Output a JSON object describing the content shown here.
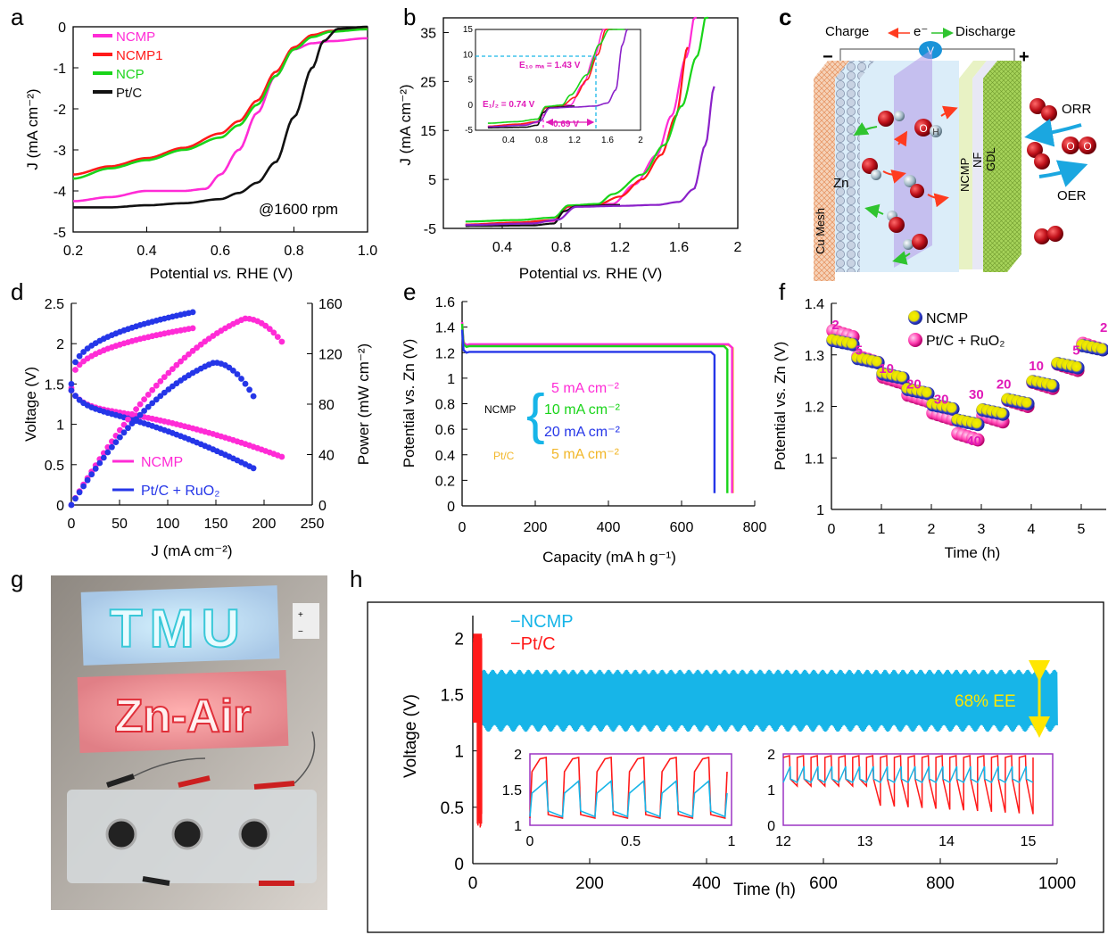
{
  "colors": {
    "NCMP": "#ff2bd6",
    "NCMP1": "#ff1a1a",
    "NCP": "#19d419",
    "PtC": "#111111",
    "PtC_RuO2": "#2536e8",
    "purple": "#8b21c9",
    "fiveOrange": "#f2b72a",
    "cyan": "#17b5e8",
    "annot": "#e01ab8"
  },
  "panels": {
    "a": {
      "letter": "a",
      "xlabel": "Potential vs. RHE (V)",
      "xlabel_pre": "Potential ",
      "xlabel_it": "vs.",
      "xlabel_post": " RHE (V)",
      "ylabel": "J (mA cm⁻²)",
      "annotation": "@1600 rpm",
      "legend": [
        "NCMP",
        "NCMP1",
        "NCP",
        "Pt/C"
      ]
    },
    "b": {
      "letter": "b",
      "xlabel_pre": "Potential ",
      "xlabel_it": "vs.",
      "xlabel_post": " RHE (V)",
      "ylabel": "J (mA cm⁻²)",
      "inset_labels": {
        "e10": "E₁₀ ₘₐ = 1.43 V",
        "ehalf": "E₁/₂ = 0.74 V",
        "gap": "0.69 V"
      }
    },
    "c": {
      "letter": "c",
      "charge": "Charge",
      "electron": "e⁻",
      "discharge": "Discharge",
      "minus": "−",
      "plus": "+",
      "v": "V",
      "cu_mesh": "Cu Mesh",
      "zn": "Zn",
      "ncmp": "NCMP",
      "nf": "NF",
      "gdl": "GDL",
      "orr": "ORR",
      "oer": "OER",
      "o": "O",
      "h": "H"
    },
    "d": {
      "letter": "d",
      "xlabel": "J (mA cm⁻²)",
      "ylabel_left": "Voltage (V)",
      "ylabel_right": "Power (mW cm⁻²)",
      "legend": [
        "NCMP",
        "Pt/C + RuO₂"
      ]
    },
    "e": {
      "letter": "e",
      "xlabel": "Capacity (mA h g⁻¹)",
      "ylabel": "Potential vs. Zn (V)",
      "ncmp": "NCMP",
      "ptc": "Pt/C",
      "brace": "{",
      "rates": [
        "5 mA cm⁻²",
        "10 mA cm⁻²",
        "20 mA cm⁻²",
        "5 mA cm⁻²"
      ]
    },
    "f": {
      "letter": "f",
      "xlabel": "Time (h)",
      "ylabel": "Potential vs. Zn (V)",
      "legend": [
        "NCMP",
        "Pt/C + RuO₂"
      ],
      "step_labels": [
        "2",
        "5",
        "10",
        "20",
        "30",
        "40",
        "30",
        "20",
        "10",
        "5",
        "2"
      ]
    },
    "g": {
      "letter": "g",
      "sign_top": "TMU",
      "sign_bottom": "Zn-Air",
      "plus": "+",
      "minus": "−"
    },
    "h": {
      "letter": "h",
      "xlabel": "Time (h)",
      "ylabel": "Voltage (V)",
      "legend": [
        "−NCMP",
        "−Pt/C"
      ],
      "ee": "68% EE"
    }
  },
  "chart_data": [
    {
      "panel": "a",
      "type": "line",
      "xlim": [
        0.2,
        1.0
      ],
      "ylim": [
        -5,
        0
      ],
      "xticks": [
        "0.2",
        "0.4",
        "0.6",
        "0.8",
        "1.0"
      ],
      "yticks": [
        "0",
        "-1",
        "-2",
        "-3",
        "-4",
        "-5"
      ],
      "series": [
        {
          "name": "NCMP",
          "points": [
            [
              0.2,
              -4.25
            ],
            [
              0.3,
              -4.15
            ],
            [
              0.4,
              -4.0
            ],
            [
              0.5,
              -4.0
            ],
            [
              0.56,
              -3.95
            ],
            [
              0.6,
              -3.6
            ],
            [
              0.65,
              -3.0
            ],
            [
              0.7,
              -2.1
            ],
            [
              0.75,
              -1.2
            ],
            [
              0.8,
              -0.55
            ],
            [
              0.85,
              -0.4
            ],
            [
              0.9,
              -0.35
            ],
            [
              1.0,
              -0.28
            ]
          ]
        },
        {
          "name": "NCMP1",
          "points": [
            [
              0.2,
              -3.6
            ],
            [
              0.3,
              -3.4
            ],
            [
              0.4,
              -3.2
            ],
            [
              0.5,
              -2.95
            ],
            [
              0.6,
              -2.6
            ],
            [
              0.65,
              -2.3
            ],
            [
              0.7,
              -1.8
            ],
            [
              0.75,
              -1.1
            ],
            [
              0.8,
              -0.5
            ],
            [
              0.85,
              -0.2
            ],
            [
              0.9,
              -0.1
            ],
            [
              1.0,
              -0.05
            ]
          ]
        },
        {
          "name": "NCP",
          "points": [
            [
              0.2,
              -3.7
            ],
            [
              0.3,
              -3.45
            ],
            [
              0.4,
              -3.25
            ],
            [
              0.5,
              -3.0
            ],
            [
              0.6,
              -2.7
            ],
            [
              0.65,
              -2.4
            ],
            [
              0.7,
              -1.9
            ],
            [
              0.75,
              -1.2
            ],
            [
              0.8,
              -0.55
            ],
            [
              0.85,
              -0.25
            ],
            [
              0.9,
              -0.12
            ],
            [
              1.0,
              -0.06
            ]
          ]
        },
        {
          "name": "Pt/C",
          "points": [
            [
              0.2,
              -4.4
            ],
            [
              0.3,
              -4.4
            ],
            [
              0.4,
              -4.35
            ],
            [
              0.5,
              -4.3
            ],
            [
              0.6,
              -4.2
            ],
            [
              0.65,
              -4.05
            ],
            [
              0.7,
              -3.8
            ],
            [
              0.75,
              -3.3
            ],
            [
              0.8,
              -2.2
            ],
            [
              0.85,
              -1.0
            ],
            [
              0.88,
              -0.35
            ],
            [
              0.92,
              -0.05
            ],
            [
              1.0,
              0
            ]
          ]
        }
      ]
    },
    {
      "panel": "b",
      "type": "line",
      "xlim": [
        0,
        2
      ],
      "ylim": [
        -5,
        38
      ],
      "xticks": [
        "0.4",
        "0.8",
        "1.2",
        "1.6",
        "2"
      ],
      "yticks": [
        "-5",
        "5",
        "15",
        "25",
        "35"
      ],
      "series": [
        {
          "name": "NCMP",
          "points": [
            [
              0.15,
              -4.3
            ],
            [
              0.5,
              -4.0
            ],
            [
              0.75,
              -3.5
            ],
            [
              0.85,
              -0.6
            ],
            [
              1.0,
              -0.1
            ],
            [
              1.15,
              0
            ],
            [
              1.3,
              4
            ],
            [
              1.45,
              10
            ],
            [
              1.55,
              18
            ],
            [
              1.65,
              30
            ],
            [
              1.72,
              40
            ]
          ]
        },
        {
          "name": "NCMP1",
          "points": [
            [
              0.15,
              -4.2
            ],
            [
              0.5,
              -3.8
            ],
            [
              0.75,
              -3.3
            ],
            [
              0.85,
              -0.5
            ],
            [
              1.05,
              -0.1
            ],
            [
              1.2,
              1.5
            ],
            [
              1.35,
              5
            ],
            [
              1.48,
              10
            ],
            [
              1.58,
              18
            ],
            [
              1.66,
              32
            ]
          ]
        },
        {
          "name": "NCP",
          "points": [
            [
              0.15,
              -3.6
            ],
            [
              0.5,
              -3.3
            ],
            [
              0.75,
              -2.8
            ],
            [
              0.85,
              -0.3
            ],
            [
              1.05,
              0
            ],
            [
              1.15,
              2
            ],
            [
              1.35,
              6
            ],
            [
              1.5,
              12
            ],
            [
              1.62,
              20
            ],
            [
              1.72,
              30
            ],
            [
              1.8,
              40
            ]
          ]
        },
        {
          "name": "Pt/C",
          "points": [
            [
              0.15,
              -4.5
            ],
            [
              0.6,
              -4.4
            ],
            [
              0.75,
              -4.0
            ],
            [
              0.82,
              -1.5
            ],
            [
              0.9,
              -0.5
            ],
            [
              1.2,
              -0.2
            ]
          ]
        },
        {
          "name": "purple",
          "points": [
            [
              0.15,
              -4.3
            ],
            [
              0.6,
              -4.0
            ],
            [
              0.78,
              -3.2
            ],
            [
              0.9,
              -0.6
            ],
            [
              1.2,
              -0.4
            ],
            [
              1.45,
              -0.2
            ],
            [
              1.6,
              0.4
            ],
            [
              1.7,
              3
            ],
            [
              1.78,
              12
            ],
            [
              1.84,
              24
            ]
          ]
        }
      ]
    },
    {
      "panel": "d",
      "type": "scatter",
      "xlim": [
        0,
        250
      ],
      "ylim_left": [
        0,
        2.5
      ],
      "ylim_right": [
        0,
        160
      ],
      "xticks": [
        "0",
        "50",
        "100",
        "150",
        "200",
        "250"
      ],
      "yticks_left": [
        "0",
        "0.5",
        "1",
        "1.5",
        "2",
        "2.5"
      ],
      "yticks_right": [
        "0",
        "40",
        "80",
        "120",
        "160"
      ],
      "series": [
        {
          "name": "NCMP charge",
          "x_end": 130,
          "start": 1.45,
          "end": 2.2
        },
        {
          "name": "Pt/C + RuO₂ charge",
          "x_end": 130,
          "start": 1.5,
          "end": 2.4
        },
        {
          "name": "NCMP discharge",
          "x_end": 220,
          "start": 1.42,
          "end": 0.59
        },
        {
          "name": "Pt/C + RuO₂ discharge",
          "x_end": 190,
          "start": 1.42,
          "end": 0.45
        },
        {
          "name": "NCMP power",
          "x_end": 220,
          "peak_x": 180,
          "peak": 148,
          "end": 128
        },
        {
          "name": "Pt/C + RuO₂ power",
          "x_end": 190,
          "peak_x": 148,
          "peak": 113,
          "end": 85
        }
      ]
    },
    {
      "panel": "e",
      "type": "line",
      "xlim": [
        0,
        800
      ],
      "ylim": [
        0,
        1.6
      ],
      "xticks": [
        "0",
        "200",
        "400",
        "600",
        "800"
      ],
      "yticks": [
        "0",
        "0.2",
        "0.4",
        "0.6",
        "0.8",
        "1",
        "1.2",
        "1.4",
        "1.6"
      ],
      "series": [
        {
          "name": "NCMP 5 mA cm⁻²",
          "plateau": 1.26,
          "capacity": 738
        },
        {
          "name": "NCMP 10 mA cm⁻²",
          "plateau": 1.245,
          "capacity": 725
        },
        {
          "name": "NCMP 20 mA cm⁻²",
          "plateau": 1.2,
          "capacity": 690
        },
        {
          "name": "Pt/C 5 mA cm⁻²",
          "plateau": 1.255,
          "capacity": 740
        }
      ]
    },
    {
      "panel": "f",
      "type": "scatter",
      "xlim": [
        0,
        5.5
      ],
      "ylim": [
        1.0,
        1.4
      ],
      "xticks": [
        "0",
        "1",
        "2",
        "3",
        "4",
        "5"
      ],
      "yticks": [
        "1",
        "1.1",
        "1.2",
        "1.3",
        "1.4"
      ],
      "series": [
        {
          "name": "NCMP",
          "steps": [
            1.32,
            1.285,
            1.255,
            1.225,
            1.195,
            1.165,
            1.185,
            1.205,
            1.24,
            1.275,
            1.31
          ]
        },
        {
          "name": "Pt/C + RuO₂",
          "steps": [
            1.335,
            1.285,
            1.245,
            1.21,
            1.175,
            1.135,
            1.17,
            1.2,
            1.235,
            1.27,
            1.31
          ]
        }
      ]
    },
    {
      "panel": "h",
      "type": "line",
      "xlim": [
        0,
        1000
      ],
      "ylim": [
        0,
        2.2
      ],
      "xticks": [
        "0",
        "200",
        "400",
        "600",
        "800",
        "1000"
      ],
      "yticks": [
        "0",
        "0.5",
        "1",
        "1.5",
        "2"
      ],
      "series": [
        {
          "name": "NCMP",
          "t_end": 1000,
          "v_low": 1.2,
          "v_high": 1.7
        },
        {
          "name": "Pt/C",
          "t_end": 15,
          "v_low": 0.3,
          "v_high": 2.0
        }
      ],
      "insets": [
        {
          "xlim": [
            0,
            1
          ],
          "xticks": [
            "0",
            "0.5",
            "1"
          ],
          "ylim": [
            1,
            2
          ],
          "yticks": [
            "1",
            "1.5",
            "2"
          ]
        },
        {
          "xlim": [
            12,
            15
          ],
          "xticks": [
            "12",
            "13",
            "14",
            "15"
          ],
          "ylim": [
            0,
            2
          ],
          "yticks": [
            "0",
            "1",
            "2"
          ]
        }
      ]
    }
  ]
}
